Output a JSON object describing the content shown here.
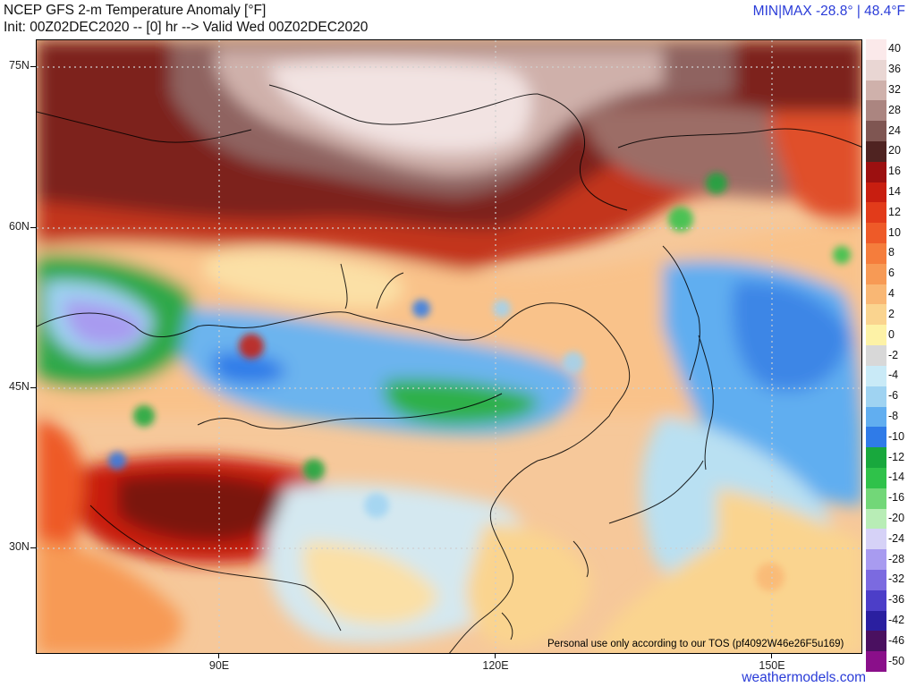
{
  "header": {
    "title": "NCEP GFS 2-m Temperature Anomaly [°F]",
    "init": "Init: 00Z02DEC2020 -- [0] hr --> Valid Wed 00Z02DEC2020",
    "minmax": "MIN|MAX -28.8° | 48.4°F"
  },
  "map": {
    "lat_labels": [
      "75N",
      "60N",
      "45N",
      "30N"
    ],
    "lon_labels": [
      "90E",
      "120E",
      "150E"
    ],
    "tos_note": "Personal use only according to our TOS (pf4092W46e26F5u169)",
    "brand": "weathermodels.com"
  },
  "legend": {
    "labels": [
      "40",
      "36",
      "32",
      "28",
      "24",
      "20",
      "16",
      "14",
      "12",
      "10",
      "8",
      "6",
      "4",
      "2",
      "0",
      "-2",
      "-4",
      "-6",
      "-8",
      "-10",
      "-12",
      "-14",
      "-16",
      "-20",
      "-24",
      "-28",
      "-32",
      "-36",
      "-42",
      "-46",
      "-50"
    ],
    "colors": [
      "#fbe9ea",
      "#e9d6d3",
      "#cfb1ab",
      "#ab8580",
      "#7f5652",
      "#4f2321",
      "#9c1010",
      "#c81e10",
      "#e23b1a",
      "#ee5a28",
      "#f57d3c",
      "#f79a55",
      "#f9b774",
      "#fad48f",
      "#fdf2a6",
      "#d8d8d8",
      "#c9eaf7",
      "#9fd3f2",
      "#61aef0",
      "#2f7be8",
      "#18a83d",
      "#2fc24a",
      "#72d778",
      "#b8edb6",
      "#d6d2f7",
      "#a89bf0",
      "#7b6ae0",
      "#4c3ec8",
      "#2a1fa0",
      "#4a1060",
      "#8a0f8a"
    ]
  }
}
